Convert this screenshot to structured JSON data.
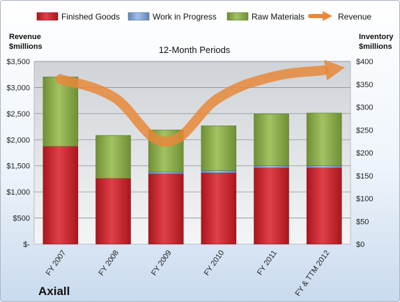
{
  "chart_data": {
    "type": "bar",
    "stacked": true,
    "title": "12-Month Periods",
    "company": "Axiall",
    "categories": [
      "FY 2007",
      "FY 2008",
      "FY 2009",
      "FY 2010",
      "FY 2011",
      "FY & TTM 2012"
    ],
    "left_axis": {
      "title_line1": "Revenue",
      "title_line2": "$millions",
      "ylim": [
        0,
        3500
      ],
      "ticks": [
        0,
        500,
        1000,
        1500,
        2000,
        2500,
        3000,
        3500
      ],
      "tick_labels": [
        "$-",
        "$500",
        "$1,000",
        "$1,500",
        "$2,000",
        "$2,500",
        "$3,000",
        "$3,500"
      ]
    },
    "right_axis": {
      "title_line1": "Inventory",
      "title_line2": "$millions",
      "ylim": [
        0,
        400
      ],
      "ticks": [
        0,
        50,
        100,
        150,
        200,
        250,
        300,
        350,
        400
      ],
      "tick_labels": [
        "$0",
        "$50",
        "$100",
        "$150",
        "$200",
        "$250",
        "$300",
        "$350",
        "$400"
      ]
    },
    "series": [
      {
        "name": "Finished Goods",
        "axis": "right",
        "color": "#c0242c",
        "values": [
          214,
          144,
          154,
          156,
          167,
          167
        ]
      },
      {
        "name": "Work in Progress",
        "axis": "right",
        "color": "#7d9fd1",
        "values": [
          0,
          0,
          4,
          5,
          5,
          5
        ]
      },
      {
        "name": "Raw Materials",
        "axis": "right",
        "color": "#86a84a",
        "values": [
          152,
          94,
          92,
          98,
          113,
          115
        ]
      },
      {
        "name": "Revenue",
        "axis": "left",
        "type": "line",
        "color": "#e8883a",
        "values": [
          3160,
          2820,
          1960,
          2800,
          3200,
          3330
        ]
      }
    ],
    "grid": true,
    "legend_position": "top"
  }
}
